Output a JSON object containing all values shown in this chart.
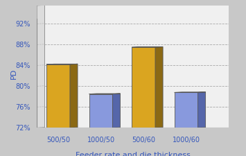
{
  "categories": [
    "500/50",
    "1000/50",
    "500/60",
    "1000/60"
  ],
  "values": [
    84.2,
    78.5,
    87.5,
    78.8
  ],
  "bar_colors_front": [
    "#DAA520",
    "#8899DD",
    "#DAA520",
    "#8899DD"
  ],
  "bar_colors_side": [
    "#8B6914",
    "#5566AA",
    "#8B6914",
    "#5566AA"
  ],
  "bar_colors_top": [
    "#E8B830",
    "#AABBEE",
    "#E8B830",
    "#AABBEE"
  ],
  "ylabel": "PD",
  "xlabel": "Feeder rate and die thickness",
  "ylim_min": 72,
  "ylim_max": 93,
  "yticks": [
    72,
    76,
    80,
    84,
    88,
    92
  ],
  "ytick_labels": [
    "72%",
    "76%",
    "80%",
    "84%",
    "88%",
    "92%"
  ],
  "fig_bg": "#C8C8C8",
  "wall_bg": "#F0F0F0",
  "floor_bg": "#B8B8B8",
  "grid_color": "#A0A0A0",
  "label_color": "#3355BB",
  "tick_fontsize": 7,
  "label_fontsize": 8
}
